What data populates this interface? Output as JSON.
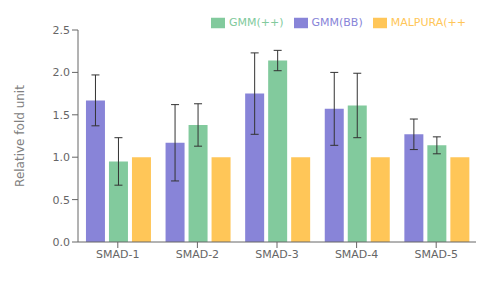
{
  "chart_data": {
    "type": "bar",
    "ylabel": "Relative fold unit",
    "categories": [
      "SMAD-1",
      "SMAD-2",
      "SMAD-3",
      "SMAD-4",
      "SMAD-5"
    ],
    "series": [
      {
        "name": "GMM(BB)",
        "color": "#8884d8",
        "values": [
          1.67,
          1.17,
          1.75,
          1.57,
          1.27
        ],
        "errors": [
          0.3,
          0.45,
          0.48,
          0.43,
          0.18
        ]
      },
      {
        "name": "GMM(++)",
        "color": "#82ca9d",
        "values": [
          0.95,
          1.38,
          2.14,
          1.61,
          1.14
        ],
        "errors": [
          0.28,
          0.25,
          0.12,
          0.38,
          0.1
        ]
      },
      {
        "name": "MALPURA(++",
        "color": "#ffc658",
        "values": [
          1.0,
          1.0,
          1.0,
          1.0,
          1.0
        ],
        "errors": [
          0.0,
          0.0,
          0.0,
          0.0,
          0.0
        ]
      }
    ],
    "ylim": [
      0.0,
      2.5
    ],
    "yticks": [
      {
        "value": 0.0,
        "label": "0.0"
      },
      {
        "value": 0.5,
        "label": "0.5"
      },
      {
        "value": 1.0,
        "label": "1.0"
      },
      {
        "value": 1.5,
        "label": "1.5"
      },
      {
        "value": 2.0,
        "label": "2.0"
      },
      {
        "value": 2.5,
        "label": "2.5"
      }
    ],
    "legend": "upper right",
    "grid": false
  }
}
